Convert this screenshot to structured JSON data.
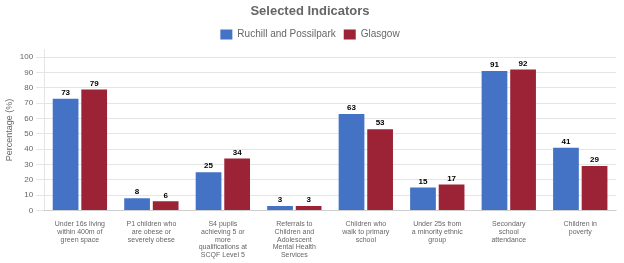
{
  "chart_data": {
    "type": "bar",
    "title": "Selected Indicators",
    "categories": [
      "Under 16s living\nwithin 400m of\ngreen space",
      "P1 children who\nare obese or\nseverely obese",
      "S4 pupils\nachieving 5 or\nmore\nqualifications at\nSCQF Level 5",
      "Referrals to\nChildren and\nAdolescent\nMental Health\nServices",
      "Children who\nwalk to primary\nschool",
      "Under 25s from\na minority ethnic\ngroup",
      "Secondary\nschool\nattendance",
      "Children in\npoverty"
    ],
    "series": [
      {
        "name": "Ruchill and Possilpark",
        "color": "#4472C4",
        "values": [
          73,
          8,
          25,
          3,
          63,
          15,
          91,
          41
        ]
      },
      {
        "name": "Glasgow",
        "color": "#9B2335",
        "values": [
          79,
          6,
          34,
          3,
          53,
          17,
          92,
          29
        ]
      }
    ],
    "ylabel": "Percentage (%)",
    "ylim": [
      0,
      105
    ],
    "yticks": [
      0,
      10,
      20,
      30,
      40,
      50,
      60,
      70,
      80,
      90,
      100
    ],
    "grid": true,
    "legend": "top",
    "data_labels": true
  }
}
